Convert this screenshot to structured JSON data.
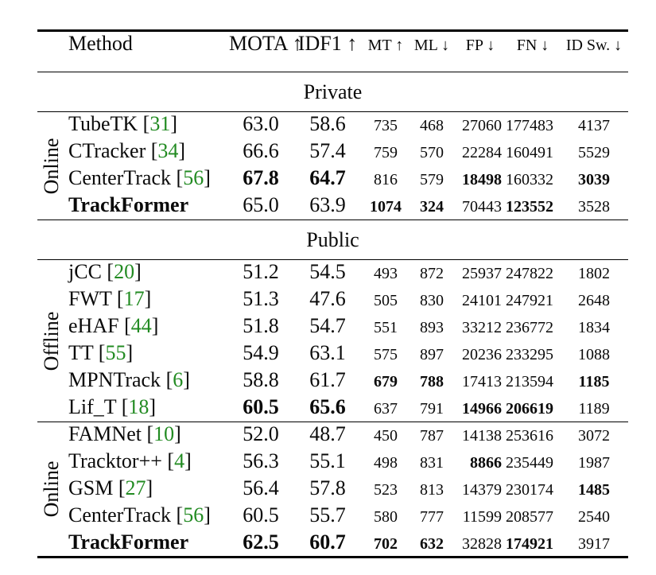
{
  "page": {
    "background": "#ffffff",
    "text_color": "#0a0a0a",
    "rule_color": "#000000",
    "citation_color": "#228B22"
  },
  "table": {
    "columns": [
      {
        "key": "method",
        "label": "Method"
      },
      {
        "key": "mota",
        "label": "MOTA ↑"
      },
      {
        "key": "idf1",
        "label": "IDF1 ↑"
      },
      {
        "key": "mt",
        "label": "MT ↑"
      },
      {
        "key": "ml",
        "label": "ML ↓"
      },
      {
        "key": "fp",
        "label": "FP ↓"
      },
      {
        "key": "fn",
        "label": "FN ↓"
      },
      {
        "key": "idsw",
        "label": "ID Sw. ↓"
      }
    ],
    "sections": [
      {
        "title": "Private",
        "groups": [
          {
            "label": "Online",
            "rows": [
              {
                "method": "TubeTK",
                "cite": "31",
                "bold_method": false,
                "cells": [
                  "63.0",
                  "58.6",
                  "735",
                  "468",
                  "27060",
                  "177483",
                  "4137"
                ],
                "bold": [
                  false,
                  false,
                  false,
                  false,
                  false,
                  false,
                  false
                ]
              },
              {
                "method": "CTracker",
                "cite": "34",
                "bold_method": false,
                "cells": [
                  "66.6",
                  "57.4",
                  "759",
                  "570",
                  "22284",
                  "160491",
                  "5529"
                ],
                "bold": [
                  false,
                  false,
                  false,
                  false,
                  false,
                  false,
                  false
                ]
              },
              {
                "method": "CenterTrack",
                "cite": "56",
                "bold_method": false,
                "cells": [
                  "67.8",
                  "64.7",
                  "816",
                  "579",
                  "18498",
                  "160332",
                  "3039"
                ],
                "bold": [
                  true,
                  true,
                  false,
                  false,
                  true,
                  false,
                  true
                ]
              },
              {
                "method": "TrackFormer",
                "cite": null,
                "bold_method": true,
                "cells": [
                  "65.0",
                  "63.9",
                  "1074",
                  "324",
                  "70443",
                  "123552",
                  "3528"
                ],
                "bold": [
                  false,
                  false,
                  true,
                  true,
                  false,
                  true,
                  false
                ]
              }
            ]
          }
        ]
      },
      {
        "title": "Public",
        "groups": [
          {
            "label": "Offline",
            "rows": [
              {
                "method": "jCC",
                "cite": "20",
                "bold_method": false,
                "cells": [
                  "51.2",
                  "54.5",
                  "493",
                  "872",
                  "25937",
                  "247822",
                  "1802"
                ],
                "bold": [
                  false,
                  false,
                  false,
                  false,
                  false,
                  false,
                  false
                ]
              },
              {
                "method": "FWT",
                "cite": "17",
                "bold_method": false,
                "cells": [
                  "51.3",
                  "47.6",
                  "505",
                  "830",
                  "24101",
                  "247921",
                  "2648"
                ],
                "bold": [
                  false,
                  false,
                  false,
                  false,
                  false,
                  false,
                  false
                ]
              },
              {
                "method": "eHAF",
                "cite": "44",
                "bold_method": false,
                "cells": [
                  "51.8",
                  "54.7",
                  "551",
                  "893",
                  "33212",
                  "236772",
                  "1834"
                ],
                "bold": [
                  false,
                  false,
                  false,
                  false,
                  false,
                  false,
                  false
                ]
              },
              {
                "method": "TT",
                "cite": "55",
                "bold_method": false,
                "cells": [
                  "54.9",
                  "63.1",
                  "575",
                  "897",
                  "20236",
                  "233295",
                  "1088"
                ],
                "bold": [
                  false,
                  false,
                  false,
                  false,
                  false,
                  false,
                  false
                ]
              },
              {
                "method": "MPNTrack",
                "cite": "6",
                "bold_method": false,
                "cells": [
                  "58.8",
                  "61.7",
                  "679",
                  "788",
                  "17413",
                  "213594",
                  "1185"
                ],
                "bold": [
                  false,
                  false,
                  true,
                  true,
                  false,
                  false,
                  true
                ]
              },
              {
                "method": "Lif_T",
                "cite": "18",
                "bold_method": false,
                "cells": [
                  "60.5",
                  "65.6",
                  "637",
                  "791",
                  "14966",
                  "206619",
                  "1189"
                ],
                "bold": [
                  true,
                  true,
                  false,
                  false,
                  true,
                  true,
                  false
                ]
              }
            ]
          },
          {
            "label": "Online",
            "rows": [
              {
                "method": "FAMNet",
                "cite": "10",
                "bold_method": false,
                "cells": [
                  "52.0",
                  "48.7",
                  "450",
                  "787",
                  "14138",
                  "253616",
                  "3072"
                ],
                "bold": [
                  false,
                  false,
                  false,
                  false,
                  false,
                  false,
                  false
                ]
              },
              {
                "method": "Tracktor++",
                "cite": "4",
                "bold_method": false,
                "cells": [
                  "56.3",
                  "55.1",
                  "498",
                  "831",
                  "8866",
                  "235449",
                  "1987"
                ],
                "bold": [
                  false,
                  false,
                  false,
                  false,
                  true,
                  false,
                  false
                ]
              },
              {
                "method": "GSM",
                "cite": "27",
                "bold_method": false,
                "cells": [
                  "56.4",
                  "57.8",
                  "523",
                  "813",
                  "14379",
                  "230174",
                  "1485"
                ],
                "bold": [
                  false,
                  false,
                  false,
                  false,
                  false,
                  false,
                  true
                ]
              },
              {
                "method": "CenterTrack",
                "cite": "56",
                "bold_method": false,
                "cells": [
                  "60.5",
                  "55.7",
                  "580",
                  "777",
                  "11599",
                  "208577",
                  "2540"
                ],
                "bold": [
                  false,
                  false,
                  false,
                  false,
                  false,
                  false,
                  false
                ]
              },
              {
                "method": "TrackFormer",
                "cite": null,
                "bold_method": true,
                "cells": [
                  "62.5",
                  "60.7",
                  "702",
                  "632",
                  "32828",
                  "174921",
                  "3917"
                ],
                "bold": [
                  true,
                  true,
                  true,
                  true,
                  false,
                  true,
                  false
                ]
              }
            ]
          }
        ]
      }
    ]
  }
}
